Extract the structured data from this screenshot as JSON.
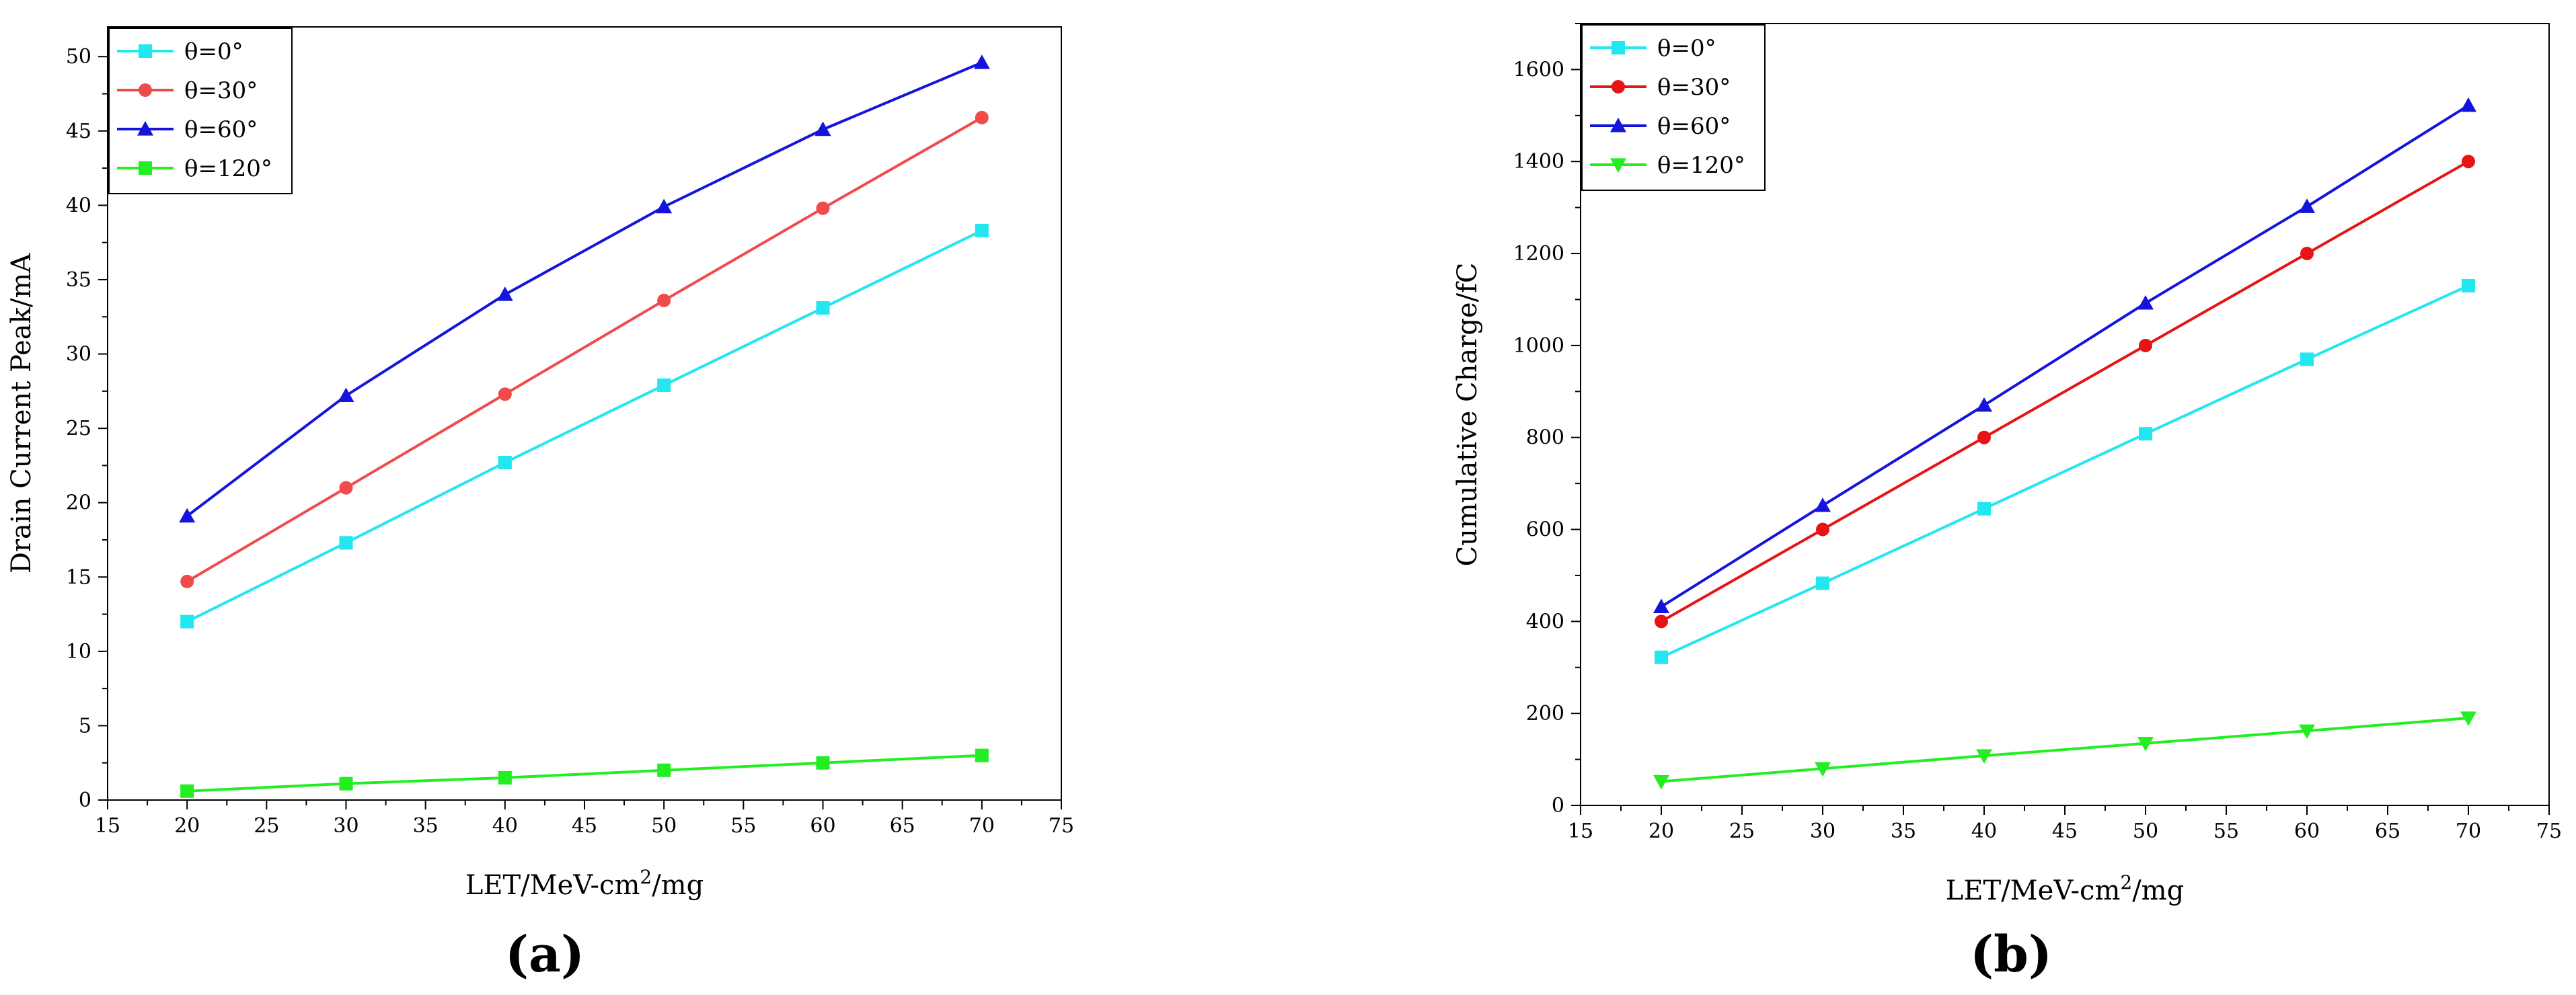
{
  "chart_data": [
    {
      "type": "line",
      "panel_label": "(a)",
      "title": "",
      "xlabel": "LET/MeV-cm",
      "xlabel_sup": "2",
      "xlabel_tail": "/mg",
      "ylabel": "Drain Current Peak/mA",
      "xlim": [
        15,
        75
      ],
      "ylim": [
        0,
        52
      ],
      "xticks": [
        15,
        20,
        25,
        30,
        35,
        40,
        45,
        50,
        55,
        60,
        65,
        70,
        75
      ],
      "yticks": [
        0,
        5,
        10,
        15,
        20,
        25,
        30,
        35,
        40,
        45,
        50
      ],
      "grid": false,
      "legend_position": "top-left",
      "x": [
        20,
        30,
        40,
        50,
        60,
        70
      ],
      "series": [
        {
          "name": "θ=0°",
          "color": "#22e6f0",
          "marker": "square",
          "values": [
            12.0,
            17.3,
            22.7,
            27.9,
            33.1,
            38.3
          ]
        },
        {
          "name": "θ=30°",
          "color": "#f04a4a",
          "marker": "circle",
          "values": [
            14.7,
            21.0,
            27.3,
            33.6,
            39.8,
            45.9
          ]
        },
        {
          "name": "θ=60°",
          "color": "#1414dc",
          "marker": "triangle-up",
          "values": [
            19.1,
            27.2,
            34.0,
            39.9,
            45.1,
            49.6
          ]
        },
        {
          "name": "θ=120°",
          "color": "#22ee22",
          "marker": "square",
          "values": [
            0.6,
            1.1,
            1.5,
            2.0,
            2.5,
            3.0
          ]
        }
      ]
    },
    {
      "type": "line",
      "panel_label": "(b)",
      "title": "",
      "xlabel": "LET/MeV-cm",
      "xlabel_sup": "2",
      "xlabel_tail": "/mg",
      "ylabel": "Cumulative Charge/fC",
      "xlim": [
        15,
        75
      ],
      "ylim": [
        0,
        1700
      ],
      "xticks": [
        15,
        20,
        25,
        30,
        35,
        40,
        45,
        50,
        55,
        60,
        65,
        70,
        75
      ],
      "yticks": [
        0,
        200,
        400,
        600,
        800,
        1000,
        1200,
        1400,
        1600
      ],
      "grid": false,
      "legend_position": "top-left",
      "x": [
        20,
        30,
        40,
        50,
        60,
        70
      ],
      "series": [
        {
          "name": "θ=0°",
          "color": "#22e6f0",
          "marker": "square",
          "values": [
            322,
            483,
            645,
            808,
            970,
            1130
          ]
        },
        {
          "name": "θ=30°",
          "color": "#e61414",
          "marker": "circle",
          "values": [
            400,
            600,
            800,
            1000,
            1200,
            1400
          ]
        },
        {
          "name": "θ=60°",
          "color": "#1414dc",
          "marker": "triangle-up",
          "values": [
            432,
            652,
            870,
            1092,
            1302,
            1522
          ]
        },
        {
          "name": "θ=120°",
          "color": "#22ee22",
          "marker": "triangle-down",
          "values": [
            52,
            80,
            108,
            135,
            162,
            190
          ]
        }
      ]
    }
  ]
}
